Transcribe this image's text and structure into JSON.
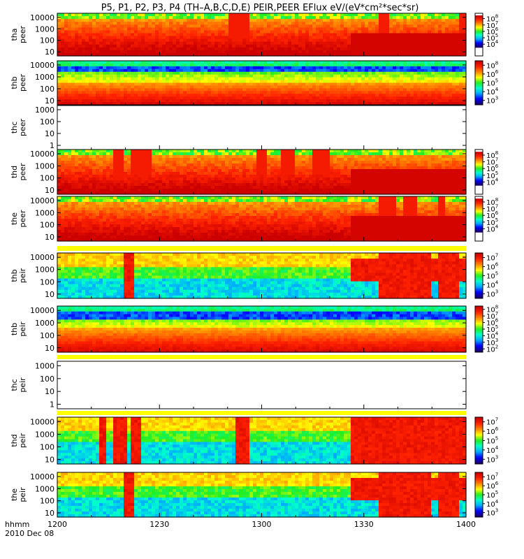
{
  "title": "P5, P1, P2, P3, P4 (TH–A,B,C,D,E) PEIR,PEER EFlux eV/(eV*cm²*sec*sr)",
  "time_axis": {
    "label_line1": "hhmm",
    "label_line2": "2010 Dec 08",
    "ticks": [
      "1200",
      "1230",
      "1300",
      "1330",
      "1400"
    ],
    "range_minutes": [
      0,
      120
    ]
  },
  "colors": {
    "ramp": [
      "#1a0070",
      "#0000ff",
      "#00aaff",
      "#00ffcc",
      "#22ee22",
      "#ffff00",
      "#ff8800",
      "#ff2200",
      "#cc0000"
    ],
    "fill_bar": "#ffff00"
  },
  "chart_data": [
    {
      "type": "heatmap",
      "probe": "tha",
      "species": "peer",
      "ylabel": [
        "tha",
        "peer"
      ],
      "y_ticks": [
        "10",
        "100",
        "1000",
        "10000"
      ],
      "y_log": true,
      "colorbar": {
        "exps": [
          "4",
          "5",
          "6",
          "7",
          "8"
        ],
        "range_exp": [
          3.5,
          8
        ],
        "empty_frac": [
          0.05,
          0.2
        ]
      },
      "energy_exp": [
        1.0,
        4.6
      ],
      "dense_after_min": 86,
      "bursts_min": [
        [
          50,
          56
        ],
        [
          94,
          97
        ],
        [
          118,
          120
        ]
      ]
    },
    {
      "type": "heatmap",
      "probe": "thb",
      "species": "peer",
      "ylabel": [
        "thb",
        "peer"
      ],
      "y_ticks": [
        "10",
        "100",
        "1000",
        "10000"
      ],
      "y_log": true,
      "colorbar": {
        "exps": [
          "3",
          "4",
          "5",
          "6",
          "8"
        ],
        "range_exp": [
          2.5,
          8
        ],
        "empty_frac": [
          0.0,
          0.0
        ]
      },
      "energy_exp": [
        1.0,
        4.0
      ],
      "layered": true
    },
    {
      "type": "heatmap",
      "probe": "thc",
      "species": "peer",
      "ylabel": [
        "thc",
        "peer"
      ],
      "y_ticks": [
        "1",
        "10",
        "100",
        "1000"
      ],
      "y_log": true,
      "empty": true
    },
    {
      "type": "heatmap",
      "probe": "thd",
      "species": "peer",
      "ylabel": [
        "thd",
        "peer"
      ],
      "y_ticks": [
        "10",
        "100",
        "1000",
        "10000"
      ],
      "y_log": true,
      "colorbar": {
        "exps": [
          "4",
          "5",
          "6",
          "7",
          "8"
        ],
        "range_exp": [
          3.5,
          8
        ],
        "empty_frac": [
          0.05,
          0.2
        ]
      },
      "energy_exp": [
        1.0,
        4.6
      ],
      "dense_after_min": 86,
      "bursts_min": [
        [
          16,
          19
        ],
        [
          22,
          28
        ],
        [
          58,
          62
        ],
        [
          66,
          70
        ],
        [
          75,
          80
        ]
      ]
    },
    {
      "type": "heatmap",
      "probe": "the",
      "species": "peer",
      "ylabel": [
        "the",
        "peer"
      ],
      "y_ticks": [
        "10",
        "100",
        "1000",
        "10000"
      ],
      "y_log": true,
      "colorbar": {
        "exps": [
          "4",
          "5",
          "6",
          "7",
          "8"
        ],
        "range_exp": [
          3.5,
          8
        ],
        "empty_frac": [
          0.05,
          0.2
        ]
      },
      "energy_exp": [
        1.0,
        4.6
      ],
      "dense_after_min": 86,
      "bursts_min": [
        [
          94,
          99
        ],
        [
          102,
          106
        ],
        [
          112,
          114
        ]
      ]
    },
    {
      "type": "heatmap",
      "probe": "thb",
      "species": "peir",
      "ylabel": [
        "thb",
        "peir"
      ],
      "y_ticks": [
        "10",
        "100",
        "1000",
        "10000"
      ],
      "y_log": true,
      "colorbar": {
        "exps": [
          "3",
          "4",
          "5",
          "6",
          "7"
        ],
        "range_exp": [
          2.5,
          7
        ],
        "empty_frac": [
          0.0,
          0.0
        ]
      },
      "energy_exp": [
        0.8,
        4.6
      ],
      "dense_after_min": 86,
      "bursts_min": [
        [
          20,
          23
        ],
        [
          94,
          110
        ],
        [
          112,
          118
        ]
      ]
    },
    {
      "type": "heatmap",
      "probe": "thb",
      "species": "peir",
      "ylabel": [
        "thb",
        "peir"
      ],
      "y_ticks": [
        "10",
        "100",
        "1000",
        "10000"
      ],
      "y_log": true,
      "colorbar": {
        "exps": [
          "2",
          "3",
          "4",
          "5",
          "6",
          "7",
          "8"
        ],
        "range_exp": [
          1.5,
          8
        ],
        "empty_frac": [
          0.0,
          0.0
        ]
      },
      "energy_exp": [
        0.8,
        4.4
      ],
      "layered": true
    },
    {
      "type": "heatmap",
      "probe": "thc",
      "species": "peir",
      "ylabel": [
        "thc",
        "peir"
      ],
      "y_ticks": [
        "1",
        "10",
        "100",
        "1000"
      ],
      "y_log": true,
      "empty": true
    },
    {
      "type": "heatmap",
      "probe": "thd",
      "species": "peir",
      "ylabel": [
        "thd",
        "peir"
      ],
      "y_ticks": [
        "10",
        "100",
        "1000",
        "10000"
      ],
      "y_log": true,
      "colorbar": {
        "exps": [
          "3",
          "4",
          "5",
          "6",
          "7"
        ],
        "range_exp": [
          2.5,
          7
        ],
        "empty_frac": [
          0.0,
          0.0
        ]
      },
      "energy_exp": [
        0.8,
        4.6
      ],
      "dense_after_min": 86,
      "bursts_min": [
        [
          12,
          14
        ],
        [
          16,
          20
        ],
        [
          22,
          25
        ],
        [
          52,
          56
        ],
        [
          86,
          120
        ]
      ]
    },
    {
      "type": "heatmap",
      "probe": "the",
      "species": "peir",
      "ylabel": [
        "the",
        "peir"
      ],
      "y_ticks": [
        "10",
        "100",
        "1000",
        "10000"
      ],
      "y_log": true,
      "colorbar": {
        "exps": [
          "3",
          "4",
          "5",
          "6",
          "7"
        ],
        "range_exp": [
          2.5,
          7
        ],
        "empty_frac": [
          0.0,
          0.0
        ]
      },
      "energy_exp": [
        0.8,
        4.6
      ],
      "dense_after_min": 86,
      "bursts_min": [
        [
          20,
          23
        ],
        [
          94,
          110
        ],
        [
          112,
          118
        ]
      ]
    }
  ]
}
